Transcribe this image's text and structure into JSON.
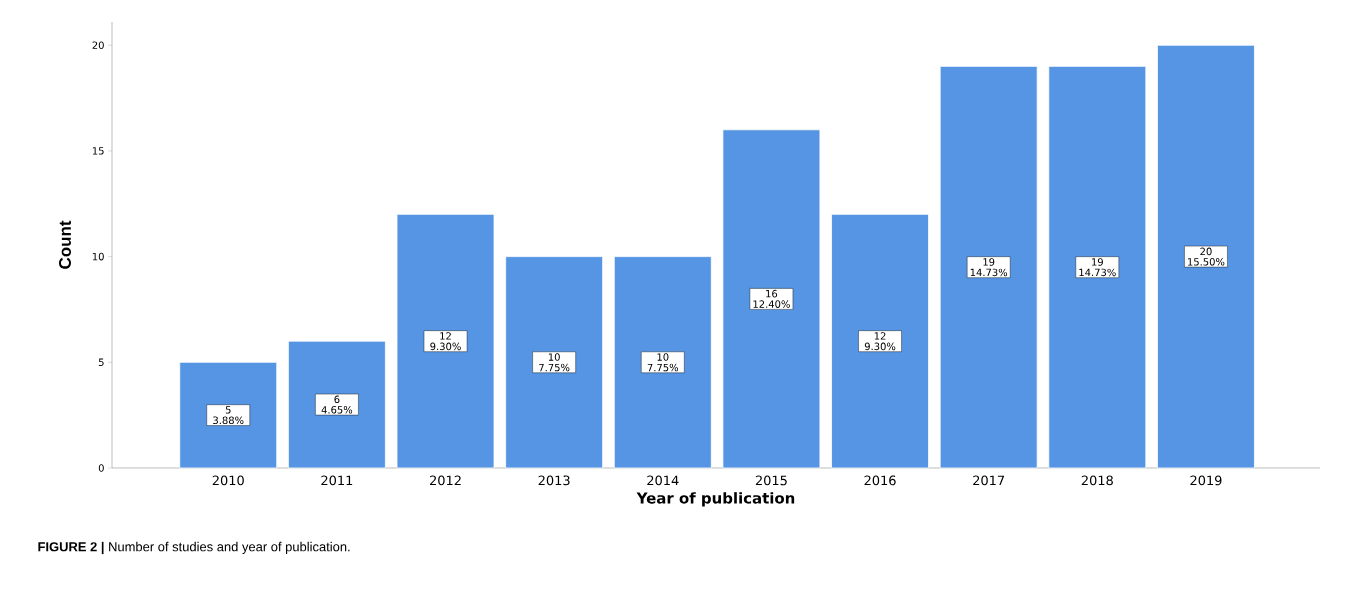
{
  "chart_data": {
    "type": "bar",
    "xlabel": "Year of publication",
    "ylabel": "Count",
    "categories": [
      "2010",
      "2011",
      "2012",
      "2013",
      "2014",
      "2015",
      "2016",
      "2017",
      "2018",
      "2019"
    ],
    "values": [
      5,
      6,
      12,
      10,
      10,
      16,
      12,
      19,
      19,
      20
    ],
    "value_labels": [
      "5 3.88%",
      "6 4.65%",
      "12 9.30%",
      "10 7.75%",
      "10 7.75%",
      "16 12.40%",
      "12 9.30%",
      "19 14.73%",
      "19 14.73%",
      "20 15.50%"
    ],
    "color": "#5595e3",
    "ylim": [
      0,
      21.1
    ],
    "yticks": [
      0,
      5,
      10,
      15,
      20
    ],
    "annotations": [
      "**FIGURE 2 |** Number of studies and year of publication."
    ]
  }
}
